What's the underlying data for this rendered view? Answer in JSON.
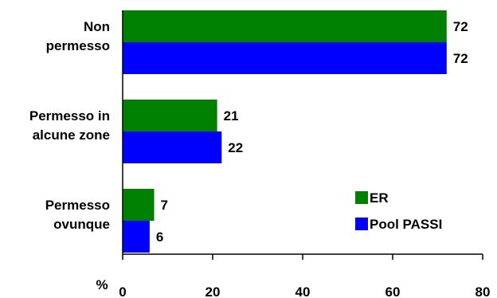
{
  "chart_data": {
    "type": "bar",
    "orientation": "horizontal",
    "categories": [
      [
        "Non",
        "permesso"
      ],
      [
        "Permesso in",
        "alcune zone"
      ],
      [
        "Permesso",
        "ovunque"
      ]
    ],
    "series": [
      {
        "name": "ER",
        "color": "#008000",
        "values": [
          72,
          21,
          7
        ]
      },
      {
        "name": "Pool PASSI",
        "color": "#0000ff",
        "values": [
          72,
          22,
          6
        ]
      }
    ],
    "xlabel": "%",
    "xlim": [
      0,
      80
    ],
    "xticks": [
      0,
      20,
      40,
      60,
      80
    ],
    "grid": false,
    "legend": "bottom-right"
  }
}
